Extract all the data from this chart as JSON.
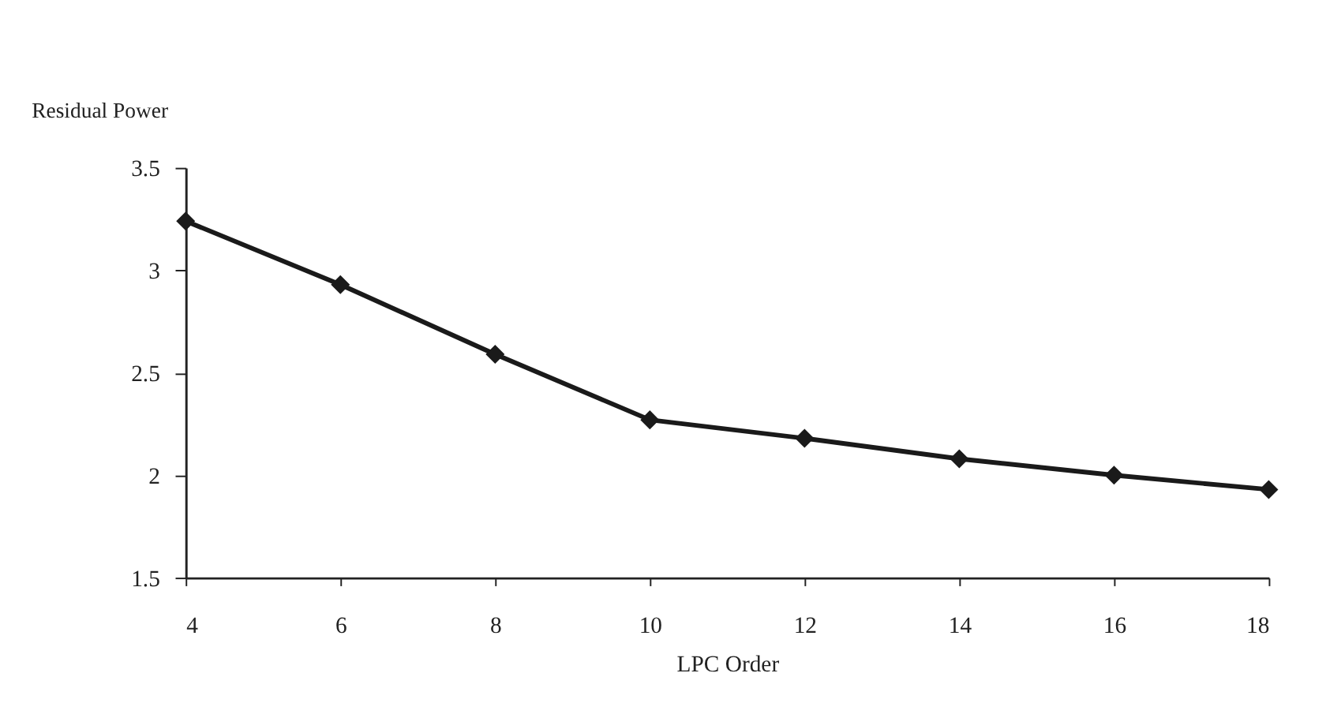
{
  "chart_data": {
    "type": "line",
    "xlabel": "LPC Order",
    "ylabel": "Residual Power",
    "x": [
      4,
      6,
      8,
      10,
      12,
      14,
      16,
      18
    ],
    "series": [
      {
        "color": "#1a1a1a",
        "values": [
          3.24,
          2.93,
          2.59,
          2.27,
          2.18,
          2.08,
          2.0,
          1.93
        ]
      }
    ],
    "xlim": [
      4,
      18
    ],
    "xticks": [
      4,
      6,
      8,
      10,
      12,
      14,
      16,
      18
    ],
    "ylim": [
      1.5,
      3.5
    ],
    "yticks": [
      1.5,
      2,
      2.5,
      3,
      3.5
    ],
    "grid": false,
    "legend": false,
    "marker": "diamond",
    "line_style": "solid"
  }
}
